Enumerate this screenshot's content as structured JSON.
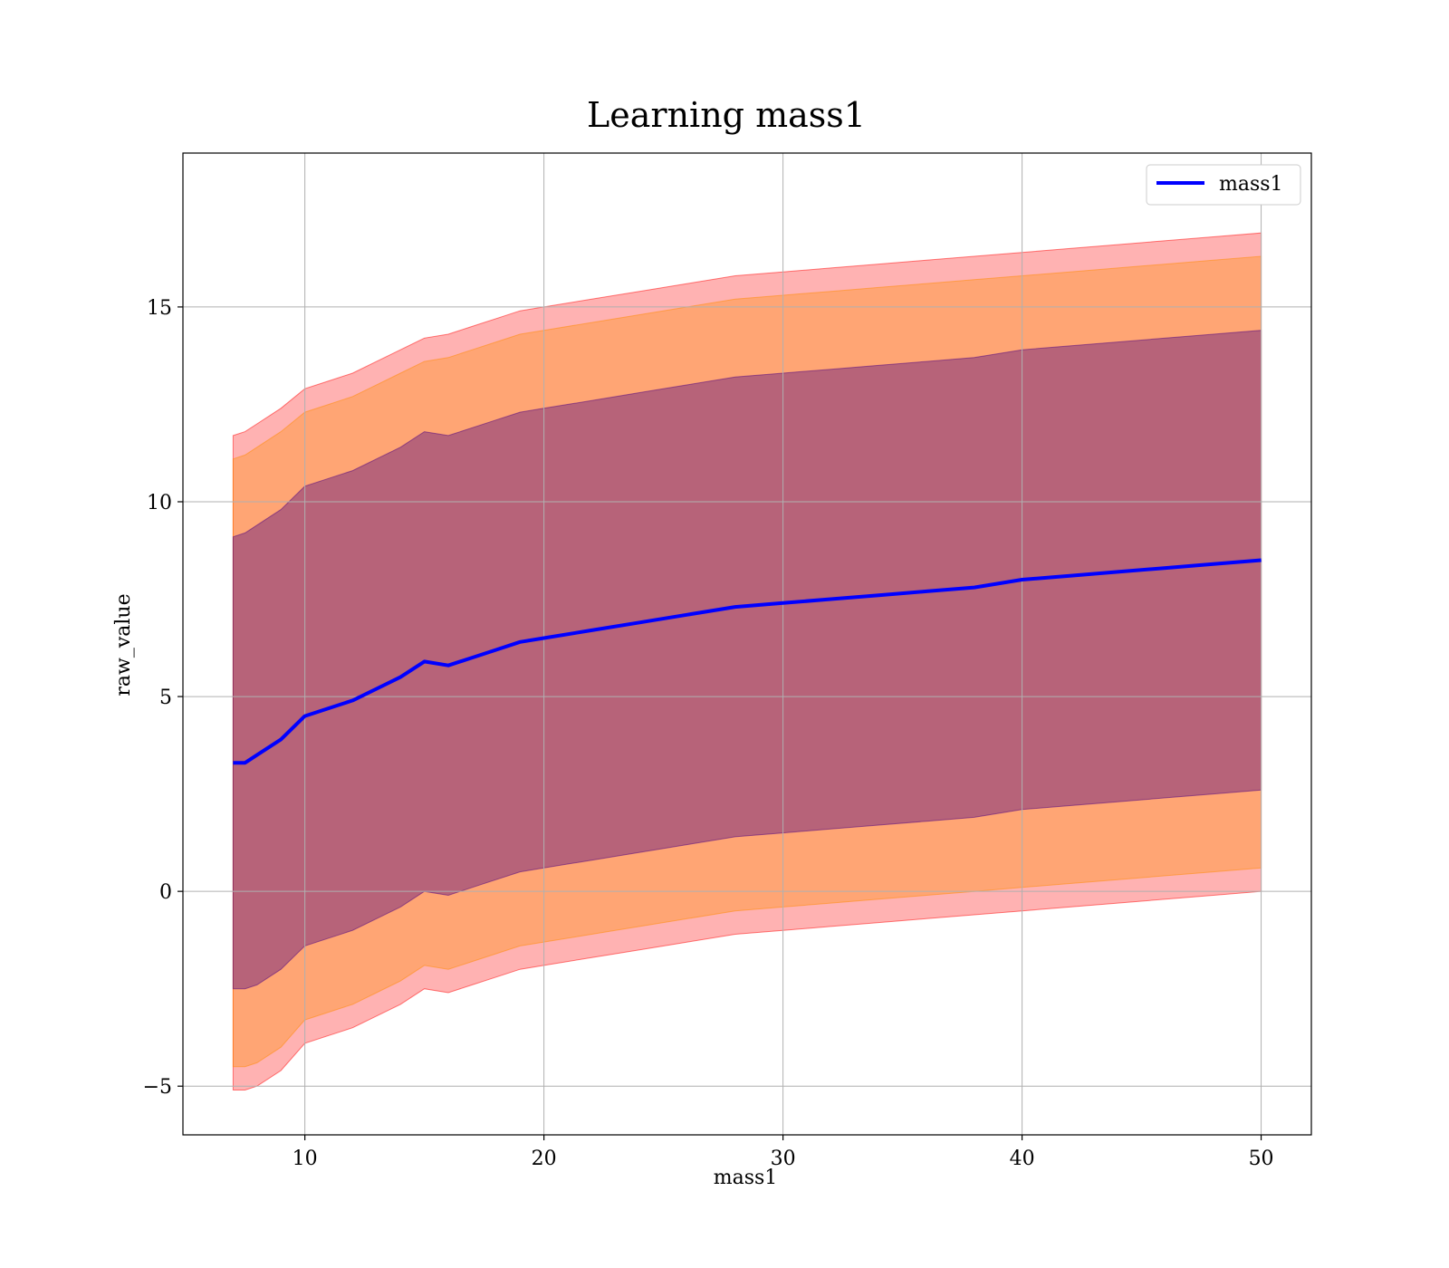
{
  "chart_data": {
    "type": "area",
    "title": "Learning mass1",
    "xlabel": "mass1",
    "ylabel": "raw_value",
    "xlim": [
      4.9,
      52.1
    ],
    "ylim": [
      -6.25,
      18.95
    ],
    "xticks": [
      10,
      20,
      30,
      40,
      50
    ],
    "yticks": [
      -5,
      0,
      5,
      10,
      15
    ],
    "grid": true,
    "legend_position": "top-right",
    "colors": {
      "mean_line": "#0000ff",
      "band_outer": "#ff0000",
      "band_middle": "#ff8c00",
      "band_inner": "#4b0082",
      "grid": "#b0b0b0"
    },
    "series": [
      {
        "name": "mass1",
        "kind": "line",
        "x": [
          7,
          7.5,
          8,
          9,
          10,
          11,
          12,
          13,
          14,
          15,
          16,
          17,
          18,
          19,
          20,
          22,
          24,
          26,
          28,
          30,
          32,
          34,
          36,
          38,
          40,
          42,
          44,
          46,
          48,
          50
        ],
        "y": [
          3.3,
          3.3,
          3.5,
          3.9,
          4.5,
          4.7,
          4.9,
          5.2,
          5.5,
          5.9,
          5.8,
          6.0,
          6.2,
          6.4,
          6.5,
          6.7,
          6.9,
          7.1,
          7.3,
          7.4,
          7.5,
          7.6,
          7.7,
          7.8,
          8.0,
          8.1,
          8.2,
          8.3,
          8.4,
          8.5
        ]
      }
    ],
    "bands": [
      {
        "level": "outer",
        "x": [
          7,
          7.5,
          8,
          9,
          10,
          11,
          12,
          13,
          14,
          15,
          16,
          17,
          18,
          19,
          20,
          22,
          24,
          26,
          28,
          30,
          32,
          34,
          36,
          38,
          40,
          42,
          44,
          46,
          48,
          50
        ],
        "upper": [
          11.7,
          11.8,
          12.0,
          12.4,
          12.9,
          13.1,
          13.3,
          13.6,
          13.9,
          14.2,
          14.3,
          14.5,
          14.7,
          14.9,
          15.0,
          15.2,
          15.4,
          15.6,
          15.8,
          15.9,
          16.0,
          16.1,
          16.2,
          16.3,
          16.4,
          16.5,
          16.6,
          16.7,
          16.8,
          16.9
        ],
        "lower": [
          -5.1,
          -5.1,
          -5.0,
          -4.6,
          -3.9,
          -3.7,
          -3.5,
          -3.2,
          -2.9,
          -2.5,
          -2.6,
          -2.4,
          -2.2,
          -2.0,
          -1.9,
          -1.7,
          -1.5,
          -1.3,
          -1.1,
          -1.0,
          -0.9,
          -0.8,
          -0.7,
          -0.6,
          -0.5,
          -0.4,
          -0.3,
          -0.2,
          -0.1,
          0.0
        ]
      },
      {
        "level": "middle",
        "x": [
          7,
          7.5,
          8,
          9,
          10,
          11,
          12,
          13,
          14,
          15,
          16,
          17,
          18,
          19,
          20,
          22,
          24,
          26,
          28,
          30,
          32,
          34,
          36,
          38,
          40,
          42,
          44,
          46,
          48,
          50
        ],
        "upper": [
          11.1,
          11.2,
          11.4,
          11.8,
          12.3,
          12.5,
          12.7,
          13.0,
          13.3,
          13.6,
          13.7,
          13.9,
          14.1,
          14.3,
          14.4,
          14.6,
          14.8,
          15.0,
          15.2,
          15.3,
          15.4,
          15.5,
          15.6,
          15.7,
          15.8,
          15.9,
          16.0,
          16.1,
          16.2,
          16.3
        ],
        "lower": [
          -4.5,
          -4.5,
          -4.4,
          -4.0,
          -3.3,
          -3.1,
          -2.9,
          -2.6,
          -2.3,
          -1.9,
          -2.0,
          -1.8,
          -1.6,
          -1.4,
          -1.3,
          -1.1,
          -0.9,
          -0.7,
          -0.5,
          -0.4,
          -0.3,
          -0.2,
          -0.1,
          0.0,
          0.1,
          0.2,
          0.3,
          0.4,
          0.5,
          0.6
        ]
      },
      {
        "level": "inner",
        "x": [
          7,
          7.5,
          8,
          9,
          10,
          11,
          12,
          13,
          14,
          15,
          16,
          17,
          18,
          19,
          20,
          22,
          24,
          26,
          28,
          30,
          32,
          34,
          36,
          38,
          40,
          42,
          44,
          46,
          48,
          50
        ],
        "upper": [
          9.1,
          9.2,
          9.4,
          9.8,
          10.4,
          10.6,
          10.8,
          11.1,
          11.4,
          11.8,
          11.7,
          11.9,
          12.1,
          12.3,
          12.4,
          12.6,
          12.8,
          13.0,
          13.2,
          13.3,
          13.4,
          13.5,
          13.6,
          13.7,
          13.9,
          14.0,
          14.1,
          14.2,
          14.3,
          14.4
        ],
        "lower": [
          -2.5,
          -2.5,
          -2.4,
          -2.0,
          -1.4,
          -1.2,
          -1.0,
          -0.7,
          -0.4,
          0.0,
          -0.1,
          0.1,
          0.3,
          0.5,
          0.6,
          0.8,
          1.0,
          1.2,
          1.4,
          1.5,
          1.6,
          1.7,
          1.8,
          1.9,
          2.1,
          2.2,
          2.3,
          2.4,
          2.5,
          2.6
        ]
      }
    ]
  }
}
